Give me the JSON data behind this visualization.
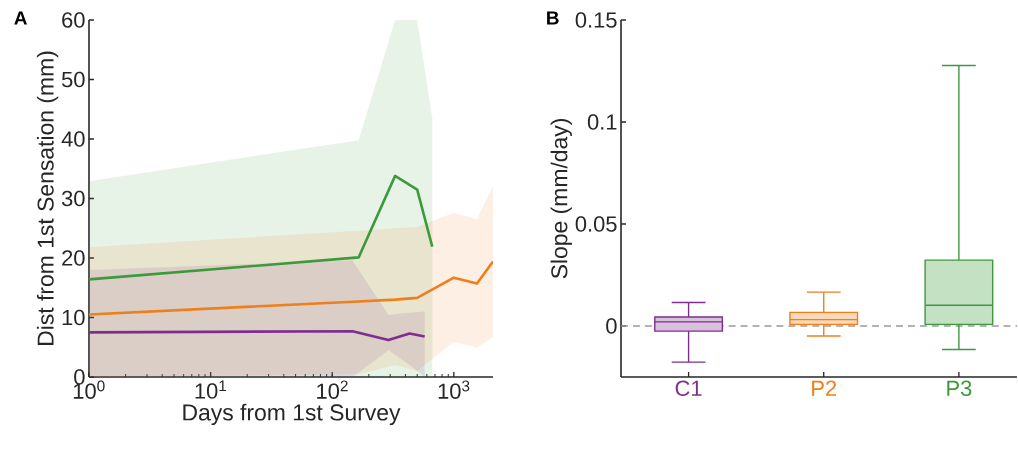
{
  "chart_data": [
    {
      "type": "line",
      "title": "**A**",
      "xlabel": "Days from 1st Survey",
      "ylabel": "Dist from 1st Sensation (mm)",
      "log": "x",
      "xlim": [
        1,
        2100
      ],
      "ylim": [
        0,
        60
      ],
      "xticks": [
        {
          "value": 1,
          "label": "10$^{0}$"
        },
        {
          "value": 10,
          "label": "10$^{1}$"
        },
        {
          "value": 100,
          "label": "10$^{2}$"
        },
        {
          "value": 1000,
          "label": "10$^{3}$"
        }
      ],
      "yticks": [
        0,
        10,
        20,
        30,
        40,
        50,
        60
      ],
      "series": [
        {
          "color": "#3c9a3c",
          "x": [
            1,
            165,
            329,
            500,
            665
          ],
          "values": [
            16.4,
            20.1,
            33.8,
            31.5,
            21.9
          ],
          "upper": [
            32.9,
            39.8,
            60,
            60,
            43.5
          ],
          "lower": [
            0,
            0,
            0,
            0,
            0
          ]
        },
        {
          "color": "#ee7f1a",
          "x": [
            1,
            165,
            329,
            500,
            1000,
            1550,
            2100
          ],
          "values": [
            10.5,
            12.7,
            13.0,
            13.3,
            16.7,
            15.7,
            19.4
          ],
          "upper": [
            21.8,
            24.6,
            25.0,
            25.2,
            27.6,
            26.5,
            32.1
          ],
          "lower": [
            0,
            0.5,
            2,
            1,
            5.9,
            4.9,
            6.7
          ]
        },
        {
          "color": "#7e2f8e",
          "x": [
            1,
            147,
            290,
            433,
            576
          ],
          "values": [
            7.5,
            7.7,
            6.2,
            7.3,
            6.8
          ],
          "upper": [
            18.0,
            19.6,
            10.4,
            10.8,
            11.0
          ],
          "lower": [
            0,
            0,
            4.5,
            2,
            0
          ]
        }
      ]
    },
    {
      "type": "box",
      "title": "**B**",
      "ylabel": "Slope (mm/day)",
      "categories": [
        "C1",
        "P2",
        "P3"
      ],
      "colors": [
        "#7e2f8e",
        "#ee7f1a",
        "#3c9a3c"
      ],
      "ylim": [
        -0.025,
        0.15
      ],
      "yticks": [
        0,
        0.05,
        0.1,
        0.15
      ],
      "boxes": [
        {
          "low": -0.0177,
          "q1": -0.0025,
          "median": 0.002,
          "q3": 0.0044,
          "high": 0.0115
        },
        {
          "low": -0.0049,
          "q1": 0.0008,
          "median": 0.0031,
          "q3": 0.0067,
          "high": 0.0166
        },
        {
          "low": -0.0115,
          "q1": 0.0008,
          "median": 0.0102,
          "q3": 0.0323,
          "high": 0.1277
        }
      ],
      "ref_lines": [
        {
          "axis": "y",
          "value": 0,
          "color": "#999999",
          "line_style": "dashed"
        }
      ]
    }
  ]
}
